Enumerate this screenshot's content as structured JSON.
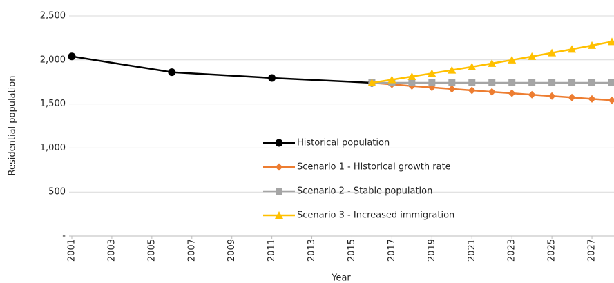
{
  "chart_data": {
    "type": "line",
    "x_label": "Year",
    "y_label": "Residential population",
    "xlim": [
      2001,
      2028
    ],
    "ylim": [
      0,
      2500
    ],
    "xticks": [
      2001,
      2003,
      2005,
      2007,
      2009,
      2011,
      2013,
      2015,
      2017,
      2019,
      2021,
      2023,
      2025,
      2027
    ],
    "yticks": [
      {
        "value": 0,
        "label": "-"
      },
      500,
      {
        "value": 1000,
        "label": "1,000"
      },
      {
        "value": 1500,
        "label": "1,500"
      },
      {
        "value": 2000,
        "label": "2,000"
      },
      {
        "value": 2500,
        "label": "2,500"
      }
    ],
    "grid": true,
    "series": [
      {
        "name": "Historical population",
        "color": "#000000",
        "marker": "circle",
        "x": [
          2001,
          2006,
          2011,
          2016
        ],
        "values": [
          2040,
          1860,
          1795,
          1740
        ]
      },
      {
        "name": "Scenario 1 - Historical growth rate",
        "color": "#ED7D31",
        "marker": "diamond",
        "x": [
          2016,
          2017,
          2018,
          2019,
          2020,
          2021,
          2022,
          2023,
          2024,
          2025,
          2026,
          2027,
          2028
        ],
        "values": [
          1740,
          1722,
          1704,
          1687,
          1670,
          1654,
          1637,
          1621,
          1605,
          1589,
          1573,
          1557,
          1542
        ]
      },
      {
        "name": "Scenario 2 - Stable population",
        "color": "#A5A5A5",
        "marker": "square",
        "x": [
          2016,
          2017,
          2018,
          2019,
          2020,
          2021,
          2022,
          2023,
          2024,
          2025,
          2026,
          2027,
          2028
        ],
        "values": [
          1740,
          1740,
          1740,
          1740,
          1740,
          1740,
          1740,
          1740,
          1740,
          1740,
          1740,
          1740,
          1740
        ]
      },
      {
        "name": "Scenario 3 - Increased immigration",
        "color": "#FFC000",
        "marker": "triangle",
        "x": [
          2016,
          2017,
          2018,
          2019,
          2020,
          2021,
          2022,
          2023,
          2024,
          2025,
          2026,
          2027,
          2028
        ],
        "values": [
          1740,
          1775,
          1811,
          1847,
          1884,
          1921,
          1960,
          1999,
          2039,
          2080,
          2121,
          2164,
          2207
        ]
      }
    ]
  }
}
